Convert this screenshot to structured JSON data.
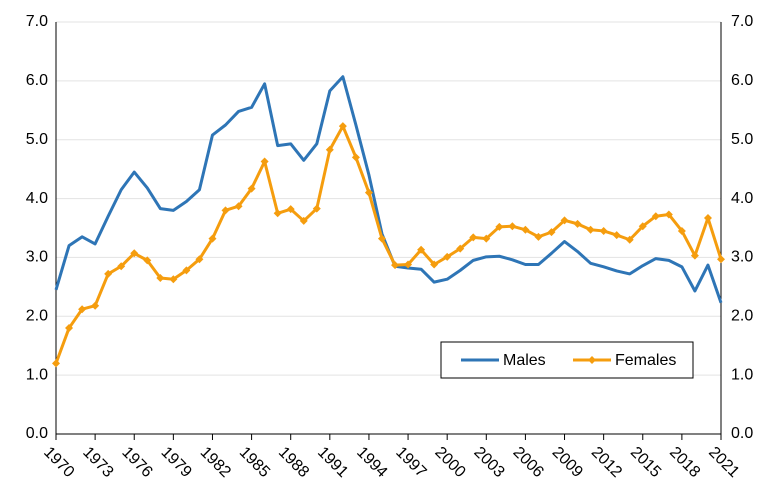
{
  "chart_data": {
    "type": "line",
    "x": [
      1970,
      1971,
      1972,
      1973,
      1974,
      1975,
      1976,
      1977,
      1978,
      1979,
      1980,
      1981,
      1982,
      1983,
      1984,
      1985,
      1986,
      1987,
      1988,
      1989,
      1990,
      1991,
      1992,
      1993,
      1994,
      1995,
      1996,
      1997,
      1998,
      1999,
      2000,
      2001,
      2002,
      2003,
      2004,
      2005,
      2006,
      2007,
      2008,
      2009,
      2010,
      2011,
      2012,
      2013,
      2014,
      2015,
      2016,
      2017,
      2018,
      2019,
      2020,
      2021
    ],
    "xlim": [
      1970,
      2021
    ],
    "xticks": [
      1970,
      1973,
      1976,
      1979,
      1982,
      1985,
      1988,
      1991,
      1994,
      1997,
      2000,
      2003,
      2006,
      2009,
      2012,
      2015,
      2018,
      2021
    ],
    "ylim": [
      0,
      7
    ],
    "yticks": [
      {
        "value": 0,
        "label": "0.0"
      },
      {
        "value": 1,
        "label": "1.0"
      },
      {
        "value": 2,
        "label": "2.0"
      },
      {
        "value": 3,
        "label": "3.0"
      },
      {
        "value": 4,
        "label": "4.0"
      },
      {
        "value": 5,
        "label": "5.0"
      },
      {
        "value": 6,
        "label": "6.0"
      },
      {
        "value": 7,
        "label": "7.0"
      }
    ],
    "y2lim": [
      0,
      7
    ],
    "y2ticks": [
      {
        "value": 0,
        "label": "0.0"
      },
      {
        "value": 1,
        "label": "1.0"
      },
      {
        "value": 2,
        "label": "2.0"
      },
      {
        "value": 3,
        "label": "3.0"
      },
      {
        "value": 4,
        "label": "4.0"
      },
      {
        "value": 5,
        "label": "5.0"
      },
      {
        "value": 6,
        "label": "6.0"
      },
      {
        "value": 7,
        "label": "7.0"
      }
    ],
    "grid": true,
    "legend": "lower right",
    "series": [
      {
        "name": "Males",
        "color": "#2e75b6",
        "marker": "none",
        "values": [
          2.45,
          3.2,
          3.35,
          3.23,
          3.7,
          4.15,
          4.45,
          4.18,
          3.83,
          3.8,
          3.95,
          4.15,
          5.08,
          5.25,
          5.48,
          5.55,
          5.95,
          4.9,
          4.93,
          4.65,
          4.93,
          5.83,
          6.07,
          5.25,
          4.4,
          3.4,
          2.85,
          2.82,
          2.8,
          2.58,
          2.63,
          2.78,
          2.95,
          3.01,
          3.02,
          2.96,
          2.88,
          2.88,
          3.07,
          3.27,
          3.1,
          2.9,
          2.84,
          2.77,
          2.72,
          2.86,
          2.98,
          2.95,
          2.84,
          2.43,
          2.87,
          2.23
        ]
      },
      {
        "name": "Females",
        "color": "#f59d0e",
        "marker": "diamond",
        "values": [
          1.2,
          1.8,
          2.12,
          2.18,
          2.72,
          2.85,
          3.07,
          2.95,
          2.65,
          2.63,
          2.78,
          2.97,
          3.32,
          3.8,
          3.87,
          4.17,
          4.63,
          3.75,
          3.82,
          3.62,
          3.83,
          4.83,
          5.23,
          4.7,
          4.1,
          3.32,
          2.87,
          2.88,
          3.13,
          2.88,
          3.01,
          3.15,
          3.34,
          3.32,
          3.52,
          3.53,
          3.47,
          3.35,
          3.43,
          3.63,
          3.57,
          3.47,
          3.45,
          3.38,
          3.3,
          3.53,
          3.7,
          3.73,
          3.45,
          3.03,
          3.67,
          2.97
        ]
      }
    ]
  }
}
